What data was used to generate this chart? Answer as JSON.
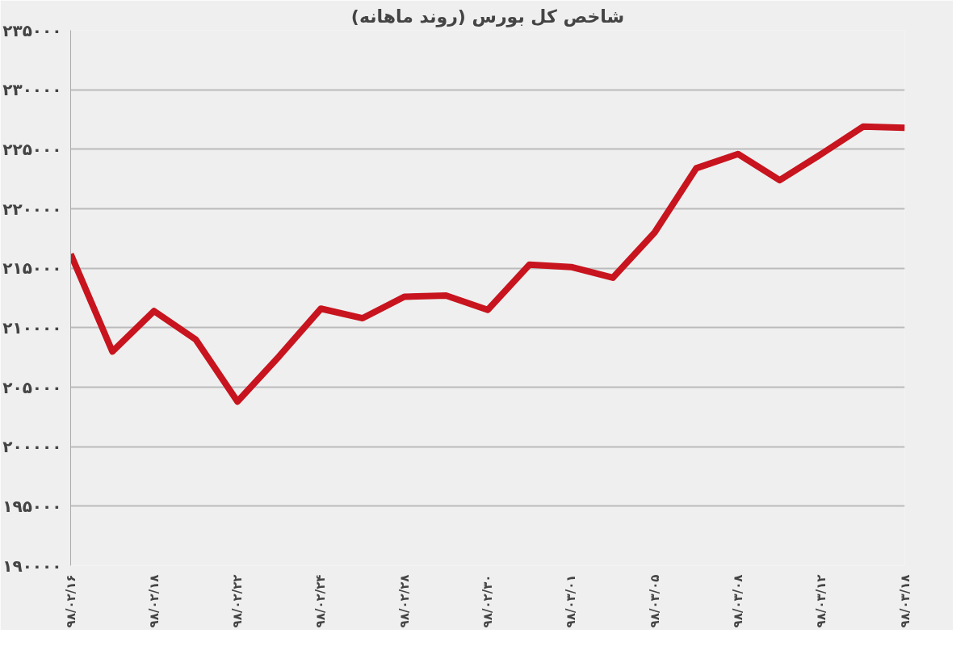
{
  "chart_data": {
    "type": "line",
    "title": "شاخص کل بورس (روند ماهانه)",
    "categories": [
      "۹۸/۰۲/۱۶",
      null,
      "۹۸/۰۲/۱۸",
      null,
      "۹۸/۰۲/۲۲",
      null,
      "۹۸/۰۲/۲۴",
      null,
      "۹۸/۰۲/۲۸",
      null,
      "۹۸/۰۲/۳۰",
      null,
      "۹۸/۰۳/۰۱",
      null,
      "۹۸/۰۳/۰۵",
      null,
      "۹۸/۰۳/۰۸",
      null,
      "۹۸/۰۳/۱۲",
      null,
      "۹۸/۰۳/۱۸"
    ],
    "series": [
      {
        "color": "#c8141e",
        "values": [
          216200,
          208000,
          211400,
          209000,
          203800,
          207600,
          211600,
          210800,
          212600,
          212700,
          211500,
          215300,
          215100,
          214200,
          218000,
          223400,
          224600,
          222400,
          224600,
          226900,
          226800
        ]
      }
    ],
    "ylim": [
      190000,
      235000
    ],
    "yticks": [
      {
        "value": 190000,
        "label": "۱۹۰۰۰۰"
      },
      {
        "value": 195000,
        "label": "۱۹۵۰۰۰"
      },
      {
        "value": 200000,
        "label": "۲۰۰۰۰۰"
      },
      {
        "value": 205000,
        "label": "۲۰۵۰۰۰"
      },
      {
        "value": 210000,
        "label": "۲۱۰۰۰۰"
      },
      {
        "value": 215000,
        "label": "۲۱۵۰۰۰"
      },
      {
        "value": 220000,
        "label": "۲۲۰۰۰۰"
      },
      {
        "value": 225000,
        "label": "۲۲۵۰۰۰"
      },
      {
        "value": 230000,
        "label": "۲۳۰۰۰۰"
      },
      {
        "value": 235000,
        "label": "۲۳۵۰۰۰"
      }
    ],
    "grid": "y",
    "marker": "none",
    "line_style": "solid"
  }
}
